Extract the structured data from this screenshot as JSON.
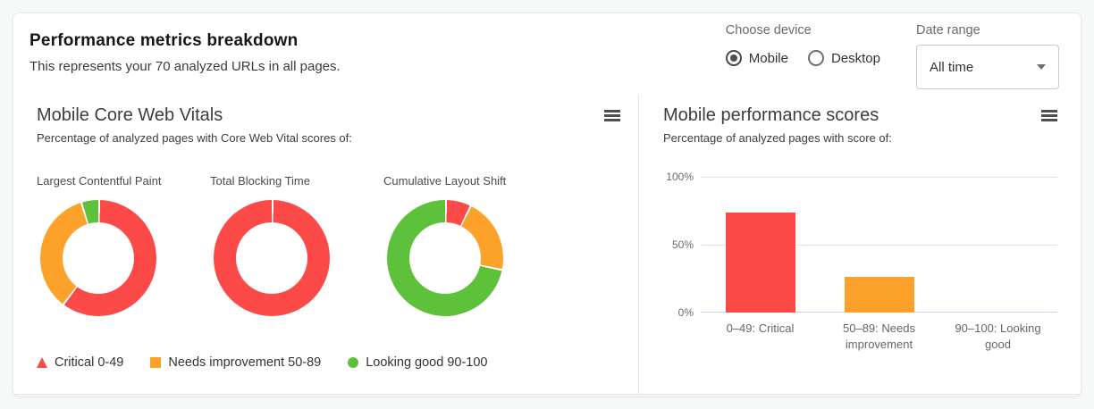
{
  "header": {
    "title": "Performance metrics breakdown",
    "subtitle": "This represents your 70 analyzed URLs in all pages."
  },
  "controls": {
    "device_label": "Choose device",
    "device_options": [
      {
        "label": "Mobile",
        "selected": true
      },
      {
        "label": "Desktop",
        "selected": false
      }
    ],
    "date_range_label": "Date range",
    "date_range_value": "All time"
  },
  "colors": {
    "critical": "#fb4a47",
    "needs_improvement": "#fca22b",
    "looking_good": "#5ec13c"
  },
  "icons": {
    "panel_menu": "hamburger",
    "dropdown_caret": "chevron-down"
  },
  "legend": [
    {
      "label": "Critical 0-49",
      "marker": "triangle",
      "color_key": "critical"
    },
    {
      "label": "Needs improvement 50-89",
      "marker": "square",
      "color_key": "needs_improvement"
    },
    {
      "label": "Looking good 90-100",
      "marker": "circle",
      "color_key": "looking_good"
    }
  ],
  "core_web_vitals": {
    "title": "Mobile Core Web Vitals",
    "subtitle": "Percentage of analyzed pages with Core Web Vital scores of:",
    "chart_data": {
      "type": "pie",
      "donuts": [
        {
          "label": "Largest Contentful Paint",
          "segments": [
            {
              "name": "Critical 0-49",
              "pct": 60,
              "color_key": "critical"
            },
            {
              "name": "Needs improvement 50-89",
              "pct": 35,
              "color_key": "needs_improvement"
            },
            {
              "name": "Looking good 90-100",
              "pct": 5,
              "color_key": "looking_good"
            }
          ]
        },
        {
          "label": "Total Blocking Time",
          "segments": [
            {
              "name": "Critical 0-49",
              "pct": 100,
              "color_key": "critical"
            }
          ]
        },
        {
          "label": "Cumulative Layout Shift",
          "segments": [
            {
              "name": "Critical 0-49",
              "pct": 7,
              "color_key": "critical"
            },
            {
              "name": "Needs improvement 50-89",
              "pct": 21,
              "color_key": "needs_improvement"
            },
            {
              "name": "Looking good 90-100",
              "pct": 72,
              "color_key": "looking_good"
            }
          ]
        }
      ]
    }
  },
  "performance_scores": {
    "title": "Mobile performance scores",
    "subtitle": "Percentage of analyzed pages with score of:",
    "chart_data": {
      "type": "bar",
      "categories": [
        "0–49: Critical",
        "50–89: Needs improvement",
        "90–100: Looking good"
      ],
      "values": [
        74,
        26,
        0
      ],
      "bar_color_keys": [
        "critical",
        "needs_improvement",
        "looking_good"
      ],
      "ylim": [
        0,
        100
      ],
      "yticks_top_to_bottom": [
        "100%",
        "50%",
        "0%"
      ],
      "grid": true,
      "legend_position": "none"
    }
  }
}
